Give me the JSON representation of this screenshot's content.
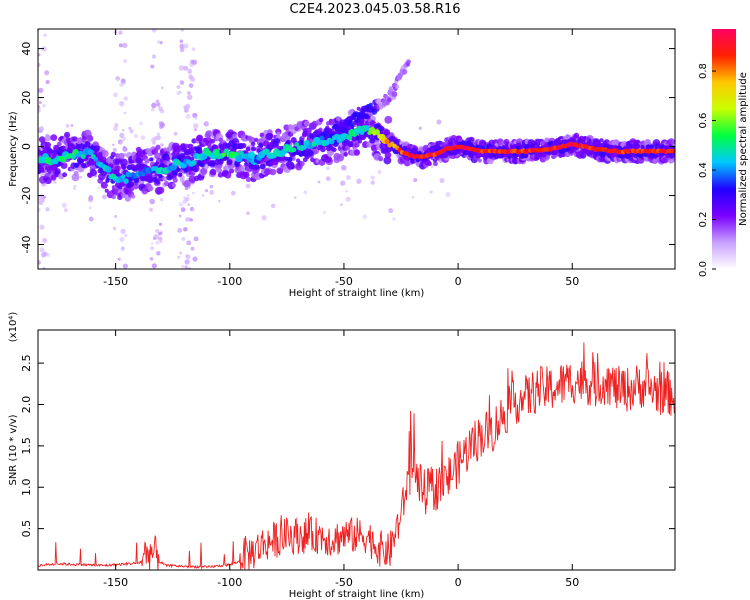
{
  "title": "C2E4.2023.045.03.58.R16",
  "chart_data": [
    {
      "type": "heatmap",
      "xlabel": "Height of straight line (km)",
      "ylabel": "Frequency (Hz)",
      "xlim": [
        -184,
        95
      ],
      "ylim": [
        -50,
        48
      ],
      "xticks": [
        -150,
        -100,
        -50,
        0,
        50
      ],
      "yticks": [
        -40,
        -20,
        0,
        20,
        40
      ],
      "colorbar": {
        "label": "Normalized spectral amplitude",
        "range": [
          0,
          0.97
        ],
        "ticks": [
          0.0,
          0.2,
          0.4,
          0.6,
          0.8
        ],
        "tick_labels": [
          "0.0",
          "0.2",
          "0.4",
          "0.6",
          "0.8"
        ],
        "colormap": [
          "#ffffff",
          "#c8a0ff",
          "#7a00ff",
          "#2000ff",
          "#00c8ff",
          "#00ff40",
          "#c8ff00",
          "#ffc800",
          "#ff2000",
          "#ff0060"
        ]
      },
      "ridge": {
        "x": [
          -184,
          -170,
          -160,
          -152,
          -145,
          -140,
          -130,
          -120,
          -110,
          -100,
          -90,
          -80,
          -70,
          -60,
          -50,
          -40,
          -35,
          -30,
          -25,
          -20,
          -15,
          -10,
          -5,
          0,
          10,
          20,
          30,
          40,
          50,
          60,
          70,
          80,
          90
        ],
        "y": [
          -6,
          -4,
          -3,
          -12,
          -13,
          -10,
          -9,
          -7,
          -3,
          -3,
          -5,
          -2,
          0,
          2,
          4,
          8,
          4,
          2,
          -2,
          -4,
          -4,
          -3,
          -1,
          0,
          -2,
          -2,
          -2,
          -1,
          1,
          -1,
          -2,
          -2,
          -2
        ],
        "ampl": [
          0.5,
          0.5,
          0.45,
          0.45,
          0.45,
          0.4,
          0.45,
          0.45,
          0.5,
          0.55,
          0.4,
          0.45,
          0.5,
          0.45,
          0.5,
          0.5,
          0.7,
          0.8,
          0.85,
          0.95,
          0.9,
          0.9,
          0.95,
          0.95,
          0.9,
          0.9,
          0.9,
          0.9,
          0.95,
          0.9,
          0.9,
          0.9,
          0.9
        ]
      },
      "branch": {
        "x": [
          -60,
          -50,
          -40,
          -30,
          -22
        ],
        "y": [
          3,
          8,
          14,
          20,
          34
        ]
      }
    },
    {
      "type": "line",
      "xlabel": "Height of straight line (km)",
      "ylabel": "SNR (10 * v/v)",
      "y_multiplier": "(x10⁴)",
      "xlim": [
        -184,
        95
      ],
      "ylim": [
        0,
        2.9
      ],
      "xticks": [
        -150,
        -100,
        -50,
        0,
        50
      ],
      "yticks": [
        0.5,
        1.0,
        1.5,
        2.0,
        2.5
      ],
      "color": "#ee2020",
      "series": [
        {
          "x": [
            -184,
            -175,
            -165,
            -155,
            -145,
            -140,
            -135,
            -132,
            -128,
            -120,
            -110,
            -100,
            -90,
            -85,
            -80,
            -75,
            -70,
            -65,
            -60,
            -55,
            -50,
            -45,
            -40,
            -35,
            -30,
            -25,
            -22,
            -20,
            -18,
            -15,
            -10,
            -5,
            0,
            5,
            10,
            15,
            20,
            25,
            30,
            35,
            40,
            45,
            50,
            55,
            60,
            65,
            70,
            75,
            80,
            85,
            90,
            95
          ],
          "y": [
            0.05,
            0.07,
            0.06,
            0.05,
            0.07,
            0.08,
            0.15,
            0.12,
            0.05,
            0.04,
            0.03,
            0.06,
            0.15,
            0.25,
            0.3,
            0.35,
            0.35,
            0.35,
            0.35,
            0.3,
            0.35,
            0.35,
            0.35,
            0.2,
            0.15,
            0.6,
            1.0,
            1.1,
            1.0,
            0.85,
            0.9,
            1.0,
            1.2,
            1.4,
            1.55,
            1.6,
            1.8,
            1.95,
            2.0,
            2.1,
            2.1,
            2.15,
            2.2,
            2.2,
            2.15,
            2.2,
            2.1,
            2.1,
            2.15,
            2.1,
            2.05,
            2.05
          ]
        }
      ]
    }
  ]
}
